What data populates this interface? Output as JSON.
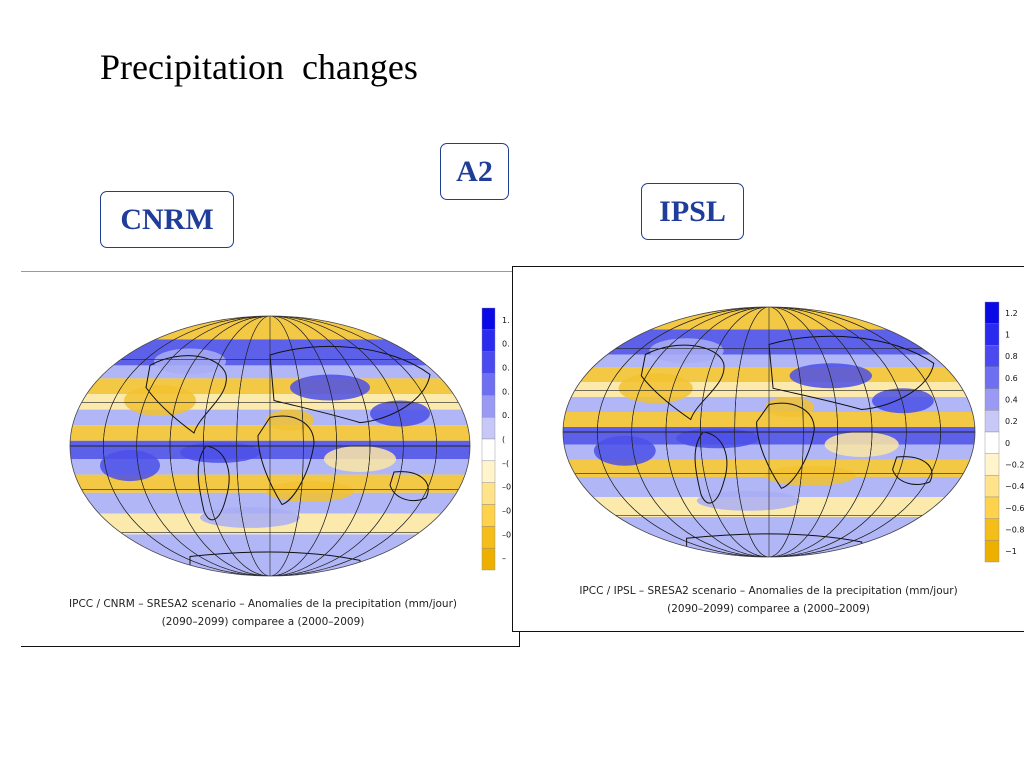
{
  "title": "Precipitation  changes",
  "scenario_label": "A2",
  "models": [
    {
      "label": "CNRM",
      "caption_line1": "IPCC / CNRM – SRESA2 scenario – Anomalies de la precipitation (mm/jour)",
      "caption_line2": "(2090–2099) comparee a (2000–2009)",
      "colorbar_labels": [
        "1.",
        "0.",
        "0.",
        "0.",
        "0.",
        "(",
        "–(",
        "–0",
        "–0",
        "–0.",
        "–"
      ],
      "colorbar_cut_off": true
    },
    {
      "label": "IPSL",
      "caption_line1": "IPCC / IPSL – SRESA2 scenario – Anomalies de la precipitation (mm/jour)",
      "caption_line2": "(2090–2099) comparee a (2000–2009)",
      "colorbar_labels": [
        "1.2",
        "1",
        "0.8",
        "0.6",
        "0.4",
        "0.2",
        "0",
        "−0.2",
        "−0.4",
        "−0.6",
        "−0.8",
        "−1"
      ],
      "colorbar_cut_off": false
    }
  ],
  "colorbar_colors": [
    "#0a0ae6",
    "#2b2bf0",
    "#4a4af0",
    "#6f6ff2",
    "#9a9af5",
    "#c8c8f8",
    "#ffffff",
    "#fff4cc",
    "#ffe38a",
    "#ffd24d",
    "#f5bd1a",
    "#eeb000"
  ],
  "map_colors": {
    "wet": "#4b50e8",
    "wet_light": "#a9aef5",
    "dry": "#f2c230",
    "dry_light": "#fbe8a3",
    "coast": "#111111",
    "grid": "#222222"
  }
}
